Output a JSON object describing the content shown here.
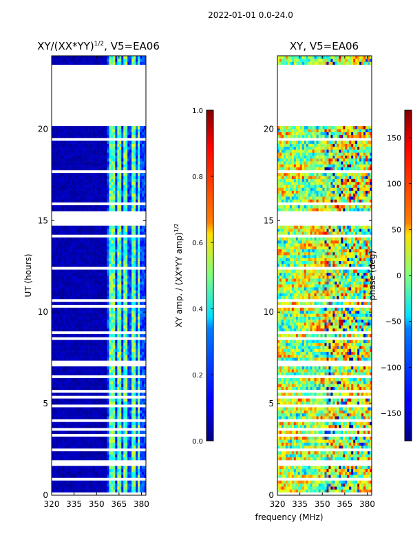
{
  "figure": {
    "suptitle": "2022-01-01 0.0-24.0",
    "xlabel_shared": "frequency (MHz)"
  },
  "chart_data": [
    {
      "type": "heatmap",
      "title": "XY/(XX*YY)^1/2, V5=EA06",
      "title_main": "XY/(XX*YY)",
      "title_exp": "1/2",
      "title_tail": ", V5=EA06",
      "xlabel": "frequency (MHz)",
      "ylabel": "UT (hours)",
      "xlim": [
        320,
        383
      ],
      "ylim": [
        0,
        24
      ],
      "xticks": [
        320,
        335,
        350,
        365,
        380
      ],
      "yticks": [
        0,
        5,
        10,
        15,
        20
      ],
      "colorbar": {
        "label": "XY amp. / (XX*YY amp)^1/2",
        "label_main": "XY amp. / (XX*YY amp)",
        "label_exp": "1/2",
        "range": [
          0.0,
          1.0
        ],
        "ticks": [
          "0.0",
          "0.2",
          "0.4",
          "0.6",
          "0.8",
          "1.0"
        ],
        "colormap": "jet"
      },
      "flagged_ut_ranges": [
        [
          20.1,
          23.5
        ],
        [
          14.7,
          15.5
        ],
        [
          8.4,
          8.7
        ],
        [
          10.3,
          10.45
        ]
      ],
      "description_values": {
        "background_level": 0.02,
        "bright_band_mhz": [
          [
            359,
            362
          ],
          [
            364,
            366
          ],
          [
            368,
            370
          ],
          [
            374,
            376
          ],
          [
            378,
            379
          ]
        ],
        "bright_band_level": 0.35
      }
    },
    {
      "type": "heatmap",
      "title": "XY, V5=EA06",
      "xlabel": "frequency (MHz)",
      "ylabel": "",
      "xlim": [
        320,
        383
      ],
      "ylim": [
        0,
        24
      ],
      "xticks": [
        320,
        335,
        350,
        365,
        380
      ],
      "yticks": [
        0,
        5,
        10,
        15,
        20
      ],
      "colorbar": {
        "label": "phase (deg)",
        "range": [
          -180,
          180
        ],
        "ticks": [
          "−150",
          "−100",
          "−50",
          "0",
          "50",
          "100",
          "150"
        ],
        "tick_values": [
          -150,
          -100,
          -50,
          0,
          50,
          100,
          150
        ],
        "colormap": "jet"
      },
      "flagged_ut_ranges": [
        [
          20.1,
          23.5
        ],
        [
          14.7,
          15.5
        ],
        [
          8.4,
          8.7
        ],
        [
          10.3,
          10.45
        ]
      ]
    }
  ]
}
